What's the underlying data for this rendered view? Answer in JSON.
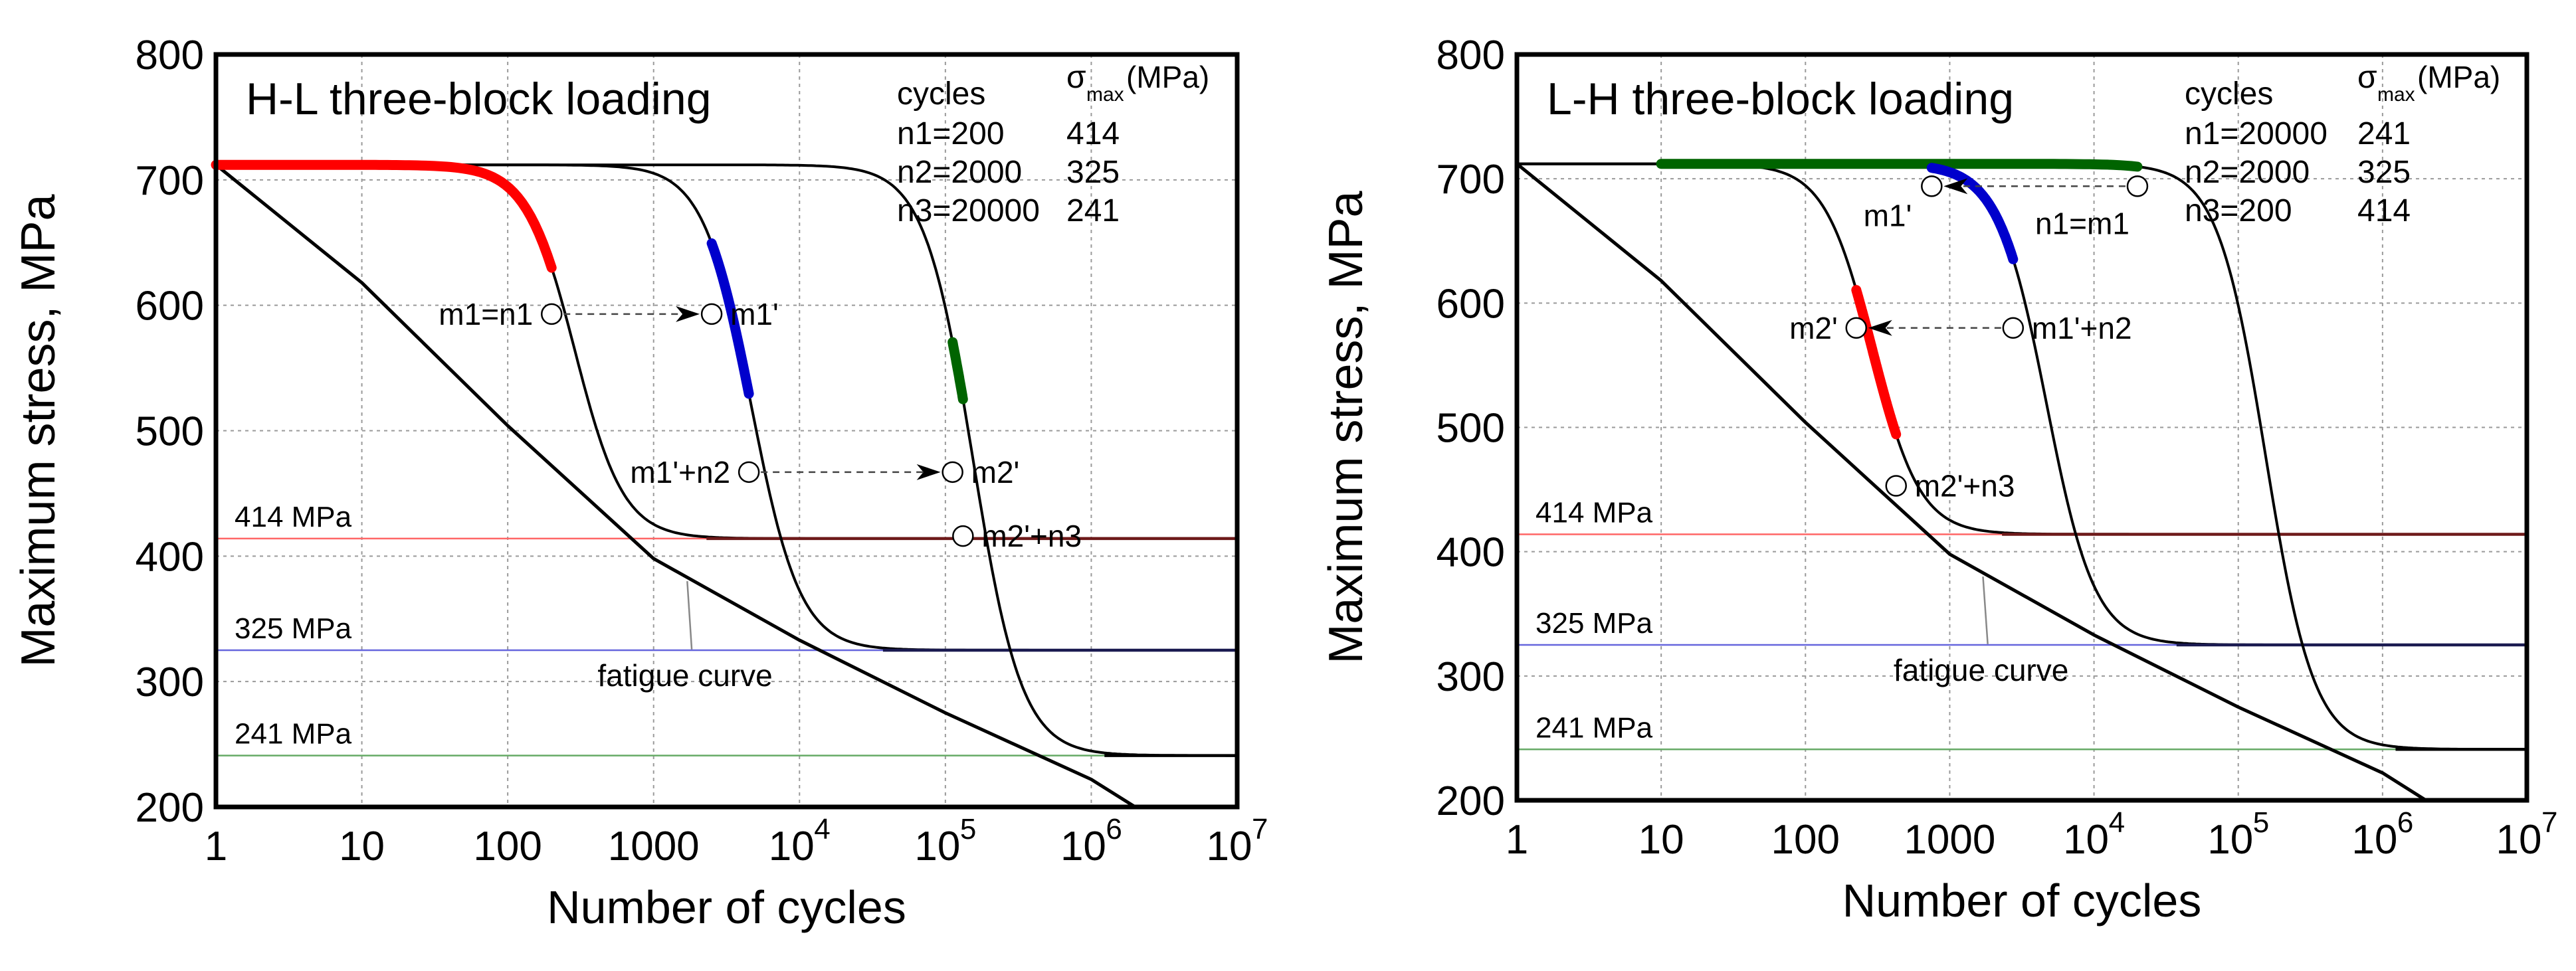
{
  "colors": {
    "red": "#ff0000",
    "blue": "#0000cc",
    "green": "#006400",
    "dark": "#000000",
    "grid": "#9a9a9a",
    "ref_red": "#ff6666",
    "ref_blue": "#6666dd",
    "ref_green": "#66aa66",
    "red_dark": "#6e1a1a",
    "blue_dark": "#1a1a50"
  },
  "chart_data": [
    {
      "type": "line",
      "title": "H-L three-block loading",
      "xlabel": "Number of cycles",
      "ylabel": "Maximum stress, MPa",
      "xscale": "log",
      "xlim": [
        1,
        10000000
      ],
      "ylim": [
        200,
        800
      ],
      "x_ticks": [
        "1",
        "10",
        "100",
        "1000",
        "10",
        "10",
        "10",
        "10"
      ],
      "x_tick_exponents": [
        "",
        "",
        "",
        "",
        "4",
        "5",
        "6",
        "7"
      ],
      "y_ticks": [
        "200",
        "300",
        "400",
        "500",
        "600",
        "700",
        "800"
      ],
      "grid": true,
      "legend_table": {
        "header_cycles": "cycles",
        "header_sigma": "σ",
        "header_sigma_sub": "max",
        "header_unit": "(MPa)",
        "rows": [
          {
            "cycles": "n1=200",
            "sigma": "414"
          },
          {
            "cycles": "n2=2000",
            "sigma": "325"
          },
          {
            "cycles": "n3=20000",
            "sigma": "241"
          }
        ]
      },
      "stress_levels": [
        {
          "label": "414 MPa",
          "stress": 414
        },
        {
          "label": "325 MPa",
          "stress": 325
        },
        {
          "label": "241 MPa",
          "stress": 241
        }
      ],
      "fatigue_label": "fatigue curve",
      "fatigue_curve": {
        "x": [
          1,
          10,
          100,
          1000,
          10000,
          100000,
          1000000,
          2000000
        ],
        "y": [
          712,
          618,
          504,
          398,
          333,
          275,
          222,
          200
        ]
      },
      "degradation_curves": [
        {
          "stress": 414,
          "x50": 290,
          "k": 6
        },
        {
          "stress": 325,
          "x50": 4700,
          "k": 6
        },
        {
          "stress": 241,
          "x50": 155000,
          "k": 6
        }
      ],
      "highlighted_segments": [
        {
          "color": "red",
          "curve": 0,
          "x_from": 1,
          "x_to": 200
        },
        {
          "color": "blue",
          "curve": 1,
          "x_from": 2500,
          "x_to": 4500
        },
        {
          "color": "green",
          "curve": 2,
          "x_from": 112000,
          "x_to": 132000
        }
      ],
      "points": [
        {
          "label": "m1=n1",
          "x": 200,
          "y": 593,
          "label_side": "left"
        },
        {
          "label": "m1'",
          "x": 2500,
          "y": 593,
          "label_side": "right"
        },
        {
          "label": "m1'+n2",
          "x": 4500,
          "y": 467,
          "label_side": "left"
        },
        {
          "label": "m2'",
          "x": 112000,
          "y": 467,
          "label_side": "right"
        },
        {
          "label": "m2'+n3",
          "x": 132000,
          "y": 416,
          "label_side": "right"
        }
      ],
      "arrows": [
        {
          "from_x": 200,
          "to_x": 2500,
          "y": 593
        },
        {
          "from_x": 4500,
          "to_x": 112000,
          "y": 467
        }
      ]
    },
    {
      "type": "line",
      "title": "L-H three-block loading",
      "xlabel": "Number of cycles",
      "ylabel": "Maximum stress, MPa",
      "xscale": "log",
      "xlim": [
        1,
        10000000
      ],
      "ylim": [
        200,
        800
      ],
      "x_ticks": [
        "1",
        "10",
        "100",
        "1000",
        "10",
        "10",
        "10",
        "10"
      ],
      "x_tick_exponents": [
        "",
        "",
        "",
        "",
        "4",
        "5",
        "6",
        "7"
      ],
      "y_ticks": [
        "200",
        "300",
        "400",
        "500",
        "600",
        "700",
        "800"
      ],
      "grid": true,
      "legend_table": {
        "header_cycles": "cycles",
        "header_sigma": "σ",
        "header_sigma_sub": "max",
        "header_unit": "(MPa)",
        "rows": [
          {
            "cycles": "n1=20000",
            "sigma": "241"
          },
          {
            "cycles": "n2=2000",
            "sigma": "325"
          },
          {
            "cycles": "n3=200",
            "sigma": "414"
          }
        ]
      },
      "stress_levels": [
        {
          "label": "414 MPa",
          "stress": 414
        },
        {
          "label": "325 MPa",
          "stress": 325
        },
        {
          "label": "241 MPa",
          "stress": 241
        }
      ],
      "fatigue_label": "fatigue curve",
      "fatigue_curve": {
        "x": [
          1,
          10,
          100,
          1000,
          10000,
          100000,
          1000000,
          2000000
        ],
        "y": [
          712,
          618,
          504,
          398,
          333,
          275,
          222,
          200
        ]
      },
      "degradation_curves": [
        {
          "stress": 414,
          "x50": 290,
          "k": 6
        },
        {
          "stress": 325,
          "x50": 4700,
          "k": 6
        },
        {
          "stress": 241,
          "x50": 155000,
          "k": 6
        }
      ],
      "highlighted_segments": [
        {
          "color": "green",
          "curve": 2,
          "x_from": 10,
          "x_to": 20000
        },
        {
          "color": "blue",
          "curve": 1,
          "x_from": 750,
          "x_to": 2750
        },
        {
          "color": "red",
          "curve": 0,
          "x_from": 225,
          "x_to": 425
        }
      ],
      "points": [
        {
          "label": "n1=m1",
          "x": 20000,
          "y": 694,
          "label_side": "below"
        },
        {
          "label": "m1'",
          "x": 750,
          "y": 694,
          "label_side": "below-left"
        },
        {
          "label": "m1'+n2",
          "x": 2750,
          "y": 580,
          "label_side": "right"
        },
        {
          "label": "m2'",
          "x": 225,
          "y": 580,
          "label_side": "left"
        },
        {
          "label": "m2'+n3",
          "x": 425,
          "y": 453,
          "label_side": "right"
        }
      ],
      "arrows": [
        {
          "from_x": 20000,
          "to_x": 750,
          "y": 694
        },
        {
          "from_x": 2750,
          "to_x": 225,
          "y": 580
        }
      ]
    }
  ]
}
